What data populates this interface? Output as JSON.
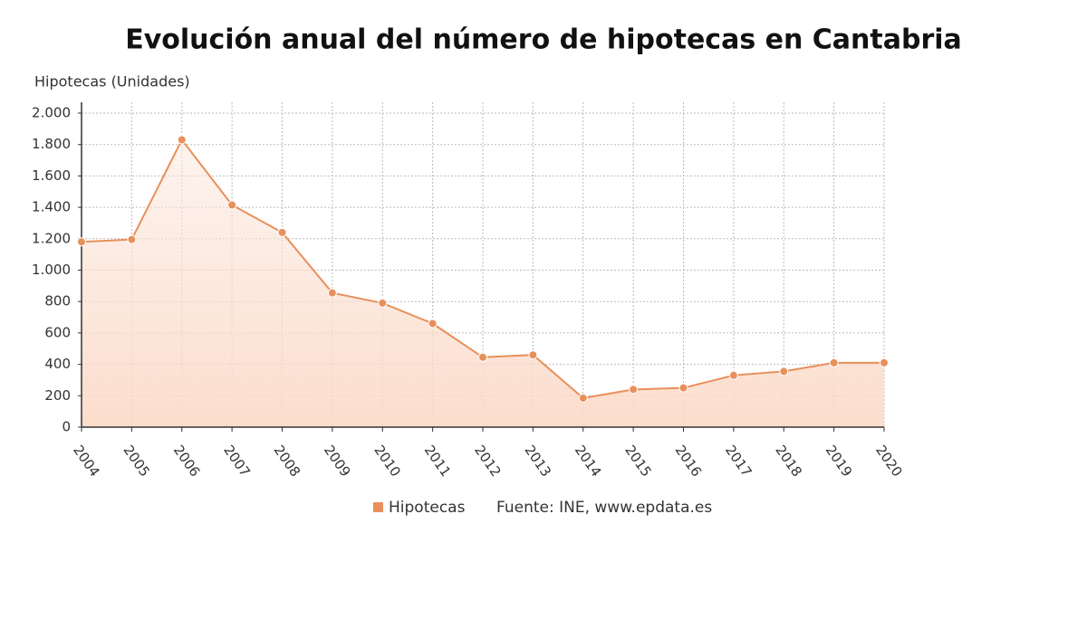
{
  "chart_data": {
    "type": "line",
    "title": "Evolución anual del número de hipotecas en Cantabria",
    "y_label": "Hipotecas (Unidades)",
    "source": "Fuente: INE, www.epdata.es",
    "x": [
      2004,
      2005,
      2006,
      2007,
      2008,
      2009,
      2010,
      2011,
      2012,
      2013,
      2014,
      2015,
      2016,
      2017,
      2018,
      2019,
      2020
    ],
    "series": [
      {
        "name": "Hipotecas",
        "color": "#e8905c",
        "values": [
          1180,
          1195,
          1830,
          1415,
          1240,
          855,
          790,
          660,
          445,
          460,
          185,
          240,
          250,
          330,
          355,
          410,
          410
        ]
      }
    ],
    "xlim": [
      2004,
      2020
    ],
    "xticks": [
      2004,
      2005,
      2006,
      2007,
      2008,
      2009,
      2010,
      2011,
      2012,
      2013,
      2014,
      2015,
      2016,
      2017,
      2018,
      2019,
      2020
    ],
    "ylim": [
      0,
      2000
    ],
    "yticks": [
      0,
      200,
      400,
      600,
      800,
      {
        "value": 1000,
        "label": "1.000"
      },
      {
        "value": 1200,
        "label": "1.200"
      },
      {
        "value": 1400,
        "label": "1.400"
      },
      {
        "value": 1600,
        "label": "1.600"
      },
      {
        "value": 1800,
        "label": "1.800"
      },
      {
        "value": 2000,
        "label": "2.000"
      }
    ],
    "grid": true
  }
}
